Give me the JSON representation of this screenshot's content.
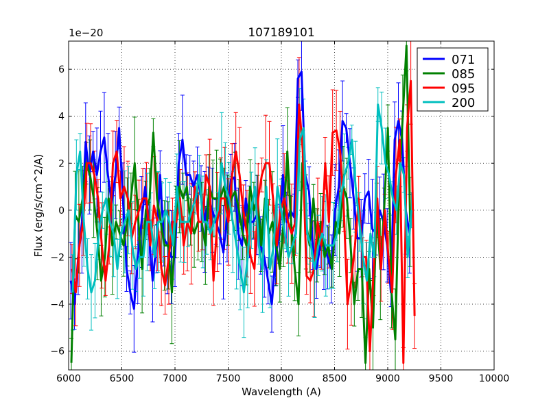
{
  "chart_data": {
    "type": "line",
    "title": "107189101",
    "xlabel": "Wavelength (A)",
    "ylabel": "Flux (erg/s/cm^2/A)",
    "y_scale_label": "1e−20",
    "xlim": [
      6000,
      10000
    ],
    "ylim": [
      -6.8,
      7.2
    ],
    "xticks": [
      6000,
      6500,
      7000,
      7500,
      8000,
      8500,
      9000,
      9500,
      10000
    ],
    "xtick_labels": [
      "6000",
      "6500",
      "7000",
      "7500",
      "8000",
      "8500",
      "9000",
      "9500",
      "10000"
    ],
    "yticks": [
      -6,
      -4,
      -2,
      0,
      2,
      4,
      6
    ],
    "ytick_labels": [
      "−6",
      "−4",
      "−2",
      "0",
      "2",
      "4",
      "6"
    ],
    "grid": true,
    "legend_position": "top-right",
    "x_start": 6020,
    "x_step": 35,
    "series": [
      {
        "name": "071",
        "color": "#0000ff",
        "values": [
          -3.0,
          -4.0,
          -2.0,
          -0.5,
          2.9,
          1.5,
          2.5,
          1.5,
          2.5,
          3.1,
          1.5,
          0.3,
          1.5,
          3.5,
          0.5,
          -2.5,
          -3.5,
          -4.2,
          -2.0,
          -0.5,
          1.0,
          -1.0,
          -3.0,
          -1.5,
          1.5,
          -1.2,
          -1.5,
          -2.0,
          -2.0,
          2.0,
          3.0,
          1.5,
          1.5,
          1.0,
          1.5,
          0.5,
          -0.5,
          0.5,
          0.0,
          -0.5,
          -1.0,
          -1.8,
          -0.3,
          1.3,
          1.4,
          -1.0,
          -1.5,
          0.5,
          -0.5,
          -0.5,
          -0.2,
          -1.5,
          -2.0,
          -3.0,
          -4.0,
          -2.0,
          -1.0,
          1.5,
          -0.5,
          0.0,
          -0.3,
          5.6,
          5.9,
          1.5,
          0.8,
          -1.5,
          -2.5,
          -1.5,
          -1.5,
          -2.0,
          -2.5,
          0.0,
          1.0,
          3.8,
          3.5,
          2.0,
          0.5,
          -1.2,
          -1.2,
          0.5,
          0.8,
          -0.8,
          -1.0,
          0.0,
          -0.5,
          -1.5,
          -3.5,
          3.0,
          3.8,
          3.0,
          0.0,
          -1.0
        ]
      },
      {
        "name": "085",
        "color": "#008000",
        "values": [
          -6.5,
          -0.2,
          -0.5,
          0.5,
          2.0,
          1.5,
          0.5,
          -1.0,
          -3.0,
          -2.0,
          0.5,
          -1.5,
          -0.5,
          -1.0,
          -1.5,
          -0.5,
          0.5,
          2.0,
          -0.5,
          -2.5,
          0.0,
          0.5,
          3.3,
          0.5,
          -0.5,
          -1.5,
          -1.5,
          -3.5,
          -0.5,
          1.0,
          0.5,
          1.0,
          -0.5,
          -1.0,
          -0.5,
          -0.5,
          -1.5,
          1.0,
          0.5,
          0.5,
          0.5,
          1.0,
          0.0,
          0.5,
          0.8,
          0.0,
          -1.0,
          -1.5,
          1.0,
          0.0,
          0.5,
          -1.5,
          0.5,
          -1.0,
          -0.5,
          -1.5,
          -2.5,
          -0.5,
          2.5,
          -0.5,
          -2.5,
          -4.0,
          2.0,
          -0.5,
          -1.5,
          0.5,
          -1.5,
          -0.5,
          -2.0,
          -1.5,
          -2.5,
          -0.5,
          -1.0,
          1.0,
          0.5,
          -1.5,
          -4.0,
          -2.5,
          -2.5,
          -6.5,
          -2.5,
          -5.0,
          0.0,
          -2.5,
          0.0,
          3.5,
          -3.5,
          -5.5,
          1.0,
          4.0,
          7.0,
          -0.5
        ]
      },
      {
        "name": "095",
        "color": "#ff0000",
        "values": [
          -2.5,
          -3.5,
          -1.5,
          -0.5,
          2.0,
          2.0,
          1.5,
          0.5,
          -1.5,
          -3.0,
          -1.5,
          2.0,
          2.5,
          0.5,
          1.0,
          0.5,
          -1.2,
          -0.5,
          0.0,
          0.5,
          0.5,
          -1.5,
          0.2,
          -0.5,
          -2.5,
          -3.2,
          -2.0,
          -0.5,
          -0.5,
          0.5,
          -1.5,
          -0.5,
          -1.0,
          1.0,
          -0.5,
          -0.5,
          1.5,
          1.0,
          -3.0,
          -0.5,
          0.5,
          0.5,
          -0.5,
          1.5,
          2.5,
          1.5,
          0.0,
          -1.0,
          -2.0,
          -2.5,
          0.5,
          1.5,
          2.0,
          2.0,
          0.5,
          -1.5,
          0.0,
          0.5,
          -0.5,
          -1.0,
          -0.5,
          4.5,
          2.5,
          -2.8,
          -3.0,
          -2.5,
          -0.5,
          -1.5,
          2.0,
          -0.5,
          3.3,
          3.4,
          2.5,
          0.0,
          -4.0,
          -3.0,
          -1.5,
          0.5,
          -2.0,
          -2.0,
          -6.0,
          -2.5,
          0.5,
          -2.5,
          0.0,
          -2.0,
          -3.5,
          1.5,
          3.0,
          -6.5,
          3.5,
          5.5,
          -4.5
        ]
      },
      {
        "name": "200",
        "color": "#00bfbf",
        "values": [
          -3.5,
          1.5,
          2.5,
          -0.5,
          -2.5,
          -3.5,
          -3.0,
          -1.0,
          0.0,
          0.5,
          -0.5,
          -1.0,
          -2.5,
          -1.0,
          -0.5,
          0.0,
          -1.5,
          -2.5,
          -2.0,
          -2.0,
          -0.5,
          -0.5,
          -2.0,
          -0.5,
          -0.5,
          0.0,
          -0.5,
          -1.5,
          1.0,
          -0.5,
          -0.5,
          -0.5,
          0.0,
          0.5,
          1.5,
          -0.5,
          -0.5,
          -1.0,
          -0.5,
          0.0,
          2.0,
          1.0,
          0.5,
          -0.5,
          -1.5,
          -2.5,
          -3.5,
          -2.0,
          0.0,
          1.0,
          -1.5,
          -2.5,
          1.0,
          -2.5,
          -1.5,
          1.0,
          0.0,
          -1.0,
          -2.0,
          -1.5,
          -1.0,
          3.0,
          3.5,
          -1.0,
          -1.5,
          -2.5,
          -1.5,
          -1.0,
          -1.5,
          -1.5,
          -1.5,
          -1.0,
          0.5,
          1.5,
          2.0,
          3.0,
          1.0,
          -0.5,
          -2.0,
          -3.0,
          -1.0,
          -2.0,
          4.5,
          3.5,
          2.0,
          1.5,
          0.5,
          0.0,
          2.0,
          1.5,
          -2.0,
          0.0
        ]
      }
    ]
  }
}
